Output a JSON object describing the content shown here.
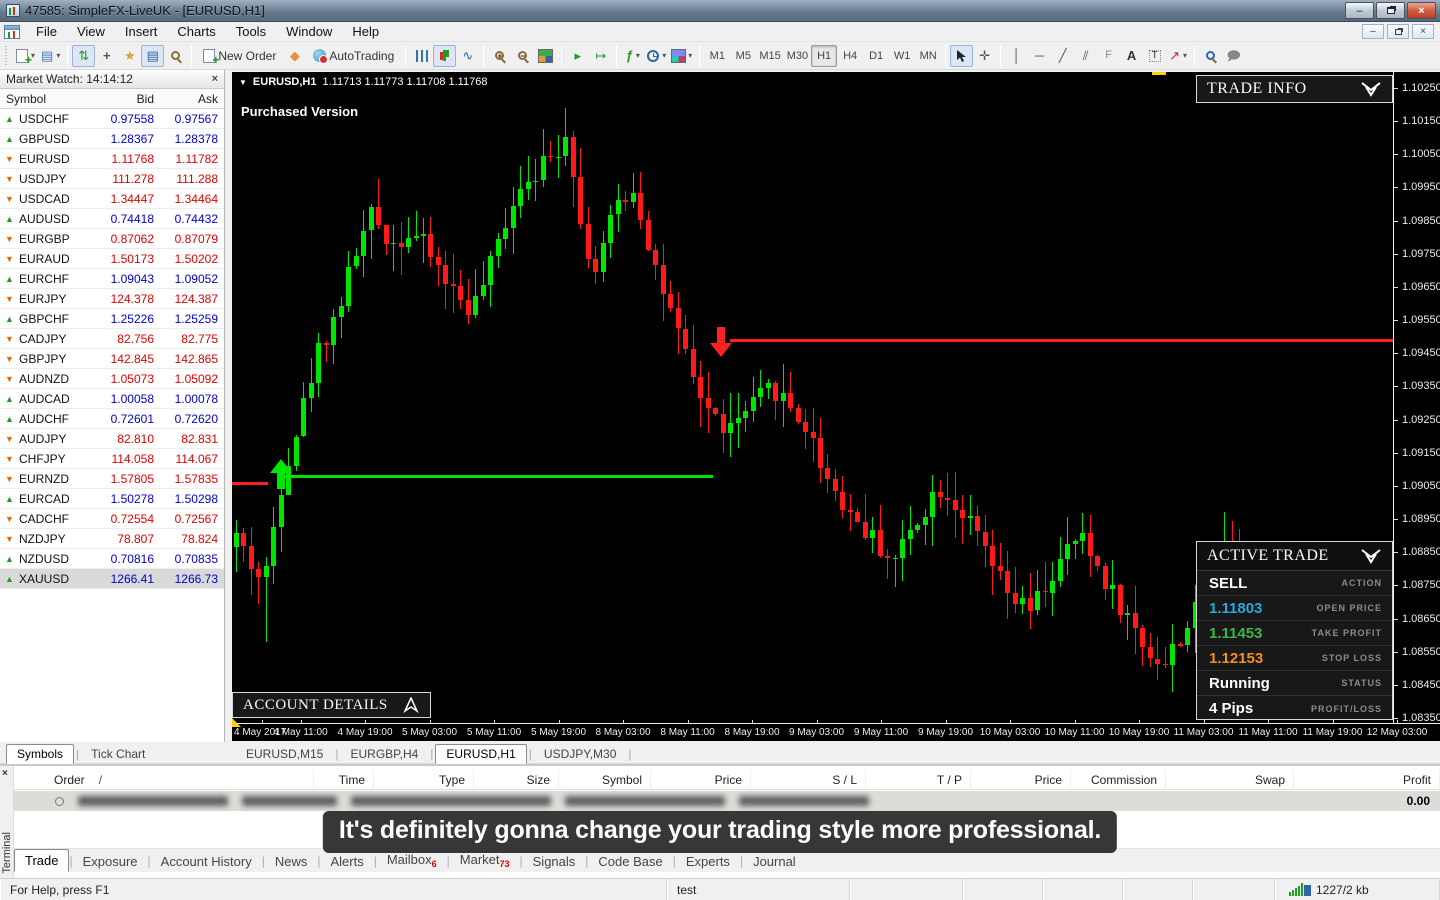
{
  "window": {
    "title": "47585: SimpleFX-LiveUK - [EURUSD,H1]"
  },
  "icons": {
    "minimize": "–",
    "maximize": "□",
    "close": "×",
    "dropdown_caret": "▾",
    "chart_dropdown": "▼",
    "mw_arrow_up": "▲",
    "mw_arrow_down": "▼",
    "sort_slash": "/",
    "bullet_circle": "○",
    "star": "★",
    "panel_list": "▤",
    "grid": "▦",
    "crosshair": "+",
    "auto_scroll": "▸",
    "chart_shift": "↦",
    "line_chart": "∿",
    "vline": "│",
    "hline": "─",
    "trendline": "╱",
    "channel": "⫽",
    "fibo": "F",
    "arrows_tool": "↗",
    "indicator_fn": "ƒ",
    "chat": "🗩"
  },
  "menu": {
    "items": [
      "File",
      "View",
      "Insert",
      "Charts",
      "Tools",
      "Window",
      "Help"
    ]
  },
  "toolbar": {
    "new_order_label": "New Order",
    "autotrading_label": "AutoTrading",
    "timeframes": [
      "M1",
      "M5",
      "M15",
      "M30",
      "H1",
      "H4",
      "D1",
      "W1",
      "MN"
    ],
    "active_timeframe": "H1",
    "text_tool": "A",
    "label_tool": "T"
  },
  "market_watch": {
    "title": "Market Watch: 14:14:12",
    "columns": [
      "Symbol",
      "Bid",
      "Ask"
    ],
    "rows": [
      {
        "symbol": "USDCHF",
        "bid": "0.97558",
        "ask": "0.97567",
        "dir": "up"
      },
      {
        "symbol": "GBPUSD",
        "bid": "1.28367",
        "ask": "1.28378",
        "dir": "up"
      },
      {
        "symbol": "EURUSD",
        "bid": "1.11768",
        "ask": "1.11782",
        "dir": "down"
      },
      {
        "symbol": "USDJPY",
        "bid": "111.278",
        "ask": "111.288",
        "dir": "down"
      },
      {
        "symbol": "USDCAD",
        "bid": "1.34447",
        "ask": "1.34464",
        "dir": "down"
      },
      {
        "symbol": "AUDUSD",
        "bid": "0.74418",
        "ask": "0.74432",
        "dir": "up"
      },
      {
        "symbol": "EURGBP",
        "bid": "0.87062",
        "ask": "0.87079",
        "dir": "down"
      },
      {
        "symbol": "EURAUD",
        "bid": "1.50173",
        "ask": "1.50202",
        "dir": "down"
      },
      {
        "symbol": "EURCHF",
        "bid": "1.09043",
        "ask": "1.09052",
        "dir": "up"
      },
      {
        "symbol": "EURJPY",
        "bid": "124.378",
        "ask": "124.387",
        "dir": "down"
      },
      {
        "symbol": "GBPCHF",
        "bid": "1.25226",
        "ask": "1.25259",
        "dir": "up"
      },
      {
        "symbol": "CADJPY",
        "bid": "82.756",
        "ask": "82.775",
        "dir": "down"
      },
      {
        "symbol": "GBPJPY",
        "bid": "142.845",
        "ask": "142.865",
        "dir": "down"
      },
      {
        "symbol": "AUDNZD",
        "bid": "1.05073",
        "ask": "1.05092",
        "dir": "down"
      },
      {
        "symbol": "AUDCAD",
        "bid": "1.00058",
        "ask": "1.00078",
        "dir": "up"
      },
      {
        "symbol": "AUDCHF",
        "bid": "0.72601",
        "ask": "0.72620",
        "dir": "up"
      },
      {
        "symbol": "AUDJPY",
        "bid": "82.810",
        "ask": "82.831",
        "dir": "down"
      },
      {
        "symbol": "CHFJPY",
        "bid": "114.058",
        "ask": "114.067",
        "dir": "down"
      },
      {
        "symbol": "EURNZD",
        "bid": "1.57805",
        "ask": "1.57835",
        "dir": "down"
      },
      {
        "symbol": "EURCAD",
        "bid": "1.50278",
        "ask": "1.50298",
        "dir": "up"
      },
      {
        "symbol": "CADCHF",
        "bid": "0.72554",
        "ask": "0.72567",
        "dir": "down"
      },
      {
        "symbol": "NZDJPY",
        "bid": "78.807",
        "ask": "78.824",
        "dir": "down"
      },
      {
        "symbol": "NZDUSD",
        "bid": "0.70816",
        "ask": "0.70835",
        "dir": "up"
      },
      {
        "symbol": "XAUUSD",
        "bid": "1266.41",
        "ask": "1266.73",
        "dir": "up",
        "selected": true
      }
    ],
    "tabs": [
      "Symbols",
      "Tick Chart"
    ],
    "active_tab": "Symbols"
  },
  "chart": {
    "header": {
      "symbol_period": "EURUSD,H1",
      "ohlc": "1.11713 1.11773 1.11708 1.11768"
    },
    "watermark": "Purchased Version",
    "trade_info": {
      "title": "TRADE INFO"
    },
    "active_trade": {
      "title": "ACTIVE TRADE",
      "rows": [
        {
          "value": "SELL",
          "label": "ACTION",
          "color": "#ffffff"
        },
        {
          "value": "1.11803",
          "label": "OPEN PRICE",
          "color": "#29a8df"
        },
        {
          "value": "1.11453",
          "label": "TAKE PROFIT",
          "color": "#3eb549"
        },
        {
          "value": "1.12153",
          "label": "STOP LOSS",
          "color": "#f09022"
        },
        {
          "value": "Running",
          "label": "STATUS",
          "color": "#ffffff"
        },
        {
          "value": "4 Pips",
          "label": "PROFIT/LOSS",
          "color": "#ffffff"
        }
      ]
    },
    "account_details_label": "ACCOUNT DETAILS",
    "price_axis": [
      "1.10250",
      "1.10150",
      "1.10050",
      "1.09950",
      "1.09850",
      "1.09750",
      "1.09650",
      "1.09550",
      "1.09450",
      "1.09350",
      "1.09250",
      "1.09150",
      "1.09050",
      "1.08950",
      "1.08850",
      "1.08750",
      "1.08650",
      "1.08550",
      "1.08450",
      "1.08350"
    ],
    "time_axis": [
      "4 May 2017",
      "4 May 11:00",
      "4 May 19:00",
      "5 May 03:00",
      "5 May 11:00",
      "5 May 19:00",
      "8 May 03:00",
      "8 May 11:00",
      "8 May 19:00",
      "9 May 03:00",
      "9 May 11:00",
      "9 May 19:00",
      "10 May 03:00",
      "10 May 11:00",
      "10 May 19:00",
      "11 May 03:00",
      "11 May 11:00",
      "11 May 19:00",
      "12 May 03:00"
    ],
    "tabs": [
      "EURUSD,M15",
      "EURGBP,H4",
      "EURUSD,H1",
      "USDJPY,M30"
    ],
    "active_tab": "EURUSD,H1",
    "chart_data": {
      "type": "candlestick",
      "symbol": "EURUSD",
      "timeframe": "H1",
      "price_max": 1.1025,
      "price_min": 1.0835,
      "candle_count": 155,
      "seed": 42,
      "up_color": "#00e600",
      "down_color": "#ff1a1a",
      "pivots": [
        [
          0.0,
          1.089
        ],
        [
          0.012,
          1.0882
        ],
        [
          0.024,
          1.0875
        ],
        [
          0.04,
          1.0908
        ],
        [
          0.055,
          1.0925
        ],
        [
          0.07,
          1.0945
        ],
        [
          0.088,
          1.0958
        ],
        [
          0.103,
          1.0975
        ],
        [
          0.118,
          1.0987
        ],
        [
          0.135,
          1.0978
        ],
        [
          0.152,
          1.0982
        ],
        [
          0.17,
          1.0974
        ],
        [
          0.188,
          1.0964
        ],
        [
          0.205,
          1.0958
        ],
        [
          0.222,
          1.0972
        ],
        [
          0.238,
          1.099
        ],
        [
          0.252,
          1.0999
        ],
        [
          0.272,
          1.1003
        ],
        [
          0.288,
          1.1013
        ],
        [
          0.3,
          1.098
        ],
        [
          0.312,
          1.097
        ],
        [
          0.33,
          1.099
        ],
        [
          0.345,
          1.0995
        ],
        [
          0.36,
          1.0975
        ],
        [
          0.378,
          1.0955
        ],
        [
          0.398,
          1.0935
        ],
        [
          0.415,
          1.0925
        ],
        [
          0.428,
          1.0922
        ],
        [
          0.445,
          1.0928
        ],
        [
          0.465,
          1.0935
        ],
        [
          0.478,
          1.093
        ],
        [
          0.495,
          1.0922
        ],
        [
          0.512,
          1.0908
        ],
        [
          0.53,
          1.0898
        ],
        [
          0.55,
          1.089
        ],
        [
          0.57,
          1.0882
        ],
        [
          0.59,
          1.0895
        ],
        [
          0.61,
          1.0905
        ],
        [
          0.628,
          1.0898
        ],
        [
          0.648,
          1.0886
        ],
        [
          0.668,
          1.0872
        ],
        [
          0.688,
          1.0867
        ],
        [
          0.708,
          1.0878
        ],
        [
          0.73,
          1.089
        ],
        [
          0.748,
          1.088
        ],
        [
          0.768,
          1.0868
        ],
        [
          0.788,
          1.0856
        ],
        [
          0.805,
          1.0851
        ],
        [
          0.822,
          1.0862
        ],
        [
          0.842,
          1.0872
        ],
        [
          0.858,
          1.089
        ],
        [
          0.875,
          1.0872
        ],
        [
          0.895,
          1.0862
        ],
        [
          0.915,
          1.0855
        ],
        [
          0.935,
          1.0862
        ],
        [
          0.955,
          1.0872
        ],
        [
          0.975,
          1.087
        ],
        [
          1.0,
          1.0876
        ]
      ],
      "wick_overrides": [
        {
          "f": 0.288,
          "hi": 1.1019
        },
        {
          "f": 0.858,
          "hi": 1.0897
        },
        {
          "f": 0.024,
          "lo": 1.0858
        }
      ],
      "annotations": {
        "green_line": {
          "price": 1.0908,
          "x1f": 0.044,
          "x2f": 0.414,
          "color": "#00e600"
        },
        "red_line": {
          "price": 1.0949,
          "x1f": 0.429,
          "x2f": 1.0,
          "color": "#ff2020"
        },
        "red_stub": {
          "price": 1.0906,
          "x1f": 0.0,
          "x2f": 0.031,
          "color": "#ff2020"
        },
        "up_arrow": {
          "f": 0.042,
          "tip_price": 1.0913,
          "color": "#00e600"
        },
        "down_arrow": {
          "f": 0.421,
          "tip_price": 1.0944,
          "color": "#ff2020"
        }
      }
    }
  },
  "terminal": {
    "side_label": "Terminal",
    "sort_indicator": "/",
    "columns": [
      "Order",
      "Time",
      "Type",
      "Size",
      "Symbol",
      "Price",
      "S / L",
      "T / P",
      "Price",
      "Commission",
      "Swap",
      "Profit"
    ],
    "balance_profit": "0.00",
    "tabs": [
      {
        "label": "Trade",
        "badge": ""
      },
      {
        "label": "Exposure",
        "badge": ""
      },
      {
        "label": "Account History",
        "badge": ""
      },
      {
        "label": "News",
        "badge": ""
      },
      {
        "label": "Alerts",
        "badge": ""
      },
      {
        "label": "Mailbox",
        "badge": "6"
      },
      {
        "label": "Market",
        "badge": "73"
      },
      {
        "label": "Signals",
        "badge": ""
      },
      {
        "label": "Code Base",
        "badge": ""
      },
      {
        "label": "Experts",
        "badge": ""
      },
      {
        "label": "Journal",
        "badge": ""
      }
    ],
    "active_tab": "Trade"
  },
  "subtitle": {
    "text": "It's definitely gonna change your trading style more professional."
  },
  "statusbar": {
    "help": "For Help, press F1",
    "account": "test",
    "connection": "1227/2 kb"
  }
}
